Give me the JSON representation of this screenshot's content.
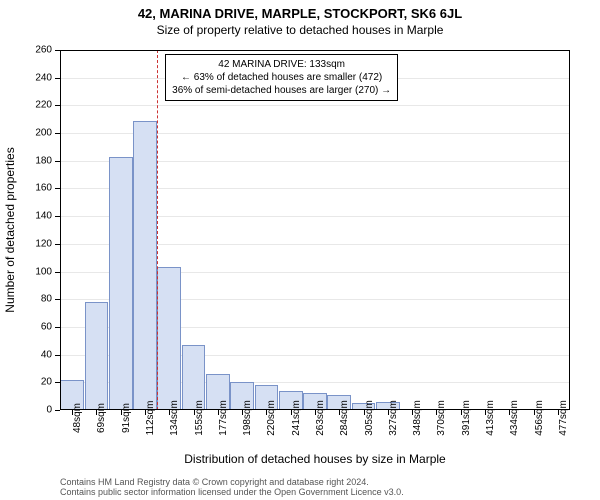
{
  "title_main": "42, MARINA DRIVE, MARPLE, STOCKPORT, SK6 6JL",
  "title_sub": "Size of property relative to detached houses in Marple",
  "chart": {
    "type": "histogram",
    "y_label": "Number of detached properties",
    "x_label": "Distribution of detached houses by size in Marple",
    "ylim": [
      0,
      260
    ],
    "ytick_step": 20,
    "x_categories": [
      "48sqm",
      "69sqm",
      "91sqm",
      "112sqm",
      "134sqm",
      "155sqm",
      "177sqm",
      "198sqm",
      "220sqm",
      "241sqm",
      "263sqm",
      "284sqm",
      "305sqm",
      "327sqm",
      "348sqm",
      "370sqm",
      "391sqm",
      "413sqm",
      "434sqm",
      "456sqm",
      "477sqm"
    ],
    "values": [
      22,
      78,
      183,
      209,
      103,
      47,
      26,
      20,
      18,
      14,
      12,
      11,
      5,
      6,
      0,
      0,
      0,
      0,
      0,
      0,
      0
    ],
    "bar_fill": "#d6e0f3",
    "bar_stroke": "#7a93c8",
    "background_color": "#ffffff",
    "grid_color": "#e8e8e8",
    "ref_line": {
      "position_index": 4,
      "color": "#cc3333"
    },
    "info_box": {
      "lines": [
        "42 MARINA DRIVE: 133sqm",
        "← 63% of detached houses are smaller (472)",
        "36% of semi-detached houses are larger (270) →"
      ]
    }
  },
  "attribution": {
    "line1": "Contains HM Land Registry data © Crown copyright and database right 2024.",
    "line2": "Contains public sector information licensed under the Open Government Licence v3.0."
  }
}
